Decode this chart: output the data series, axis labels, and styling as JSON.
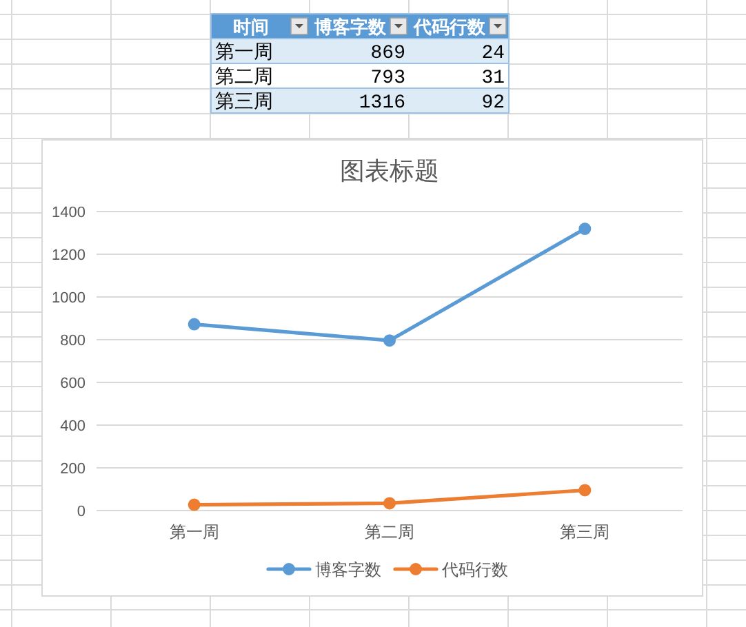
{
  "chart_data": [
    {
      "type": "other",
      "categories": [
        "时间",
        "博客字数",
        "代码行数"
      ],
      "annotations": [
        "第一周",
        "869",
        "24",
        "第二周",
        "793",
        "31",
        "第三周",
        "1316",
        "92"
      ]
    },
    {
      "type": "line",
      "title": "图表标题",
      "categories": [
        "第一周",
        "第二周",
        "第三周"
      ],
      "series": [
        {
          "name": "博客字数",
          "color": "#5b9bd5",
          "values": [
            869,
            793,
            1316
          ]
        },
        {
          "name": "代码行数",
          "color": "#ed7d31",
          "values": [
            24,
            31,
            92
          ]
        }
      ],
      "ylim": [
        0,
        1400
      ],
      "yticks": [
        0,
        200,
        400,
        600,
        800,
        1000,
        1200,
        1400
      ],
      "grid": "y",
      "legend": "bottom",
      "marker": "circle",
      "line_style": "solid"
    }
  ]
}
